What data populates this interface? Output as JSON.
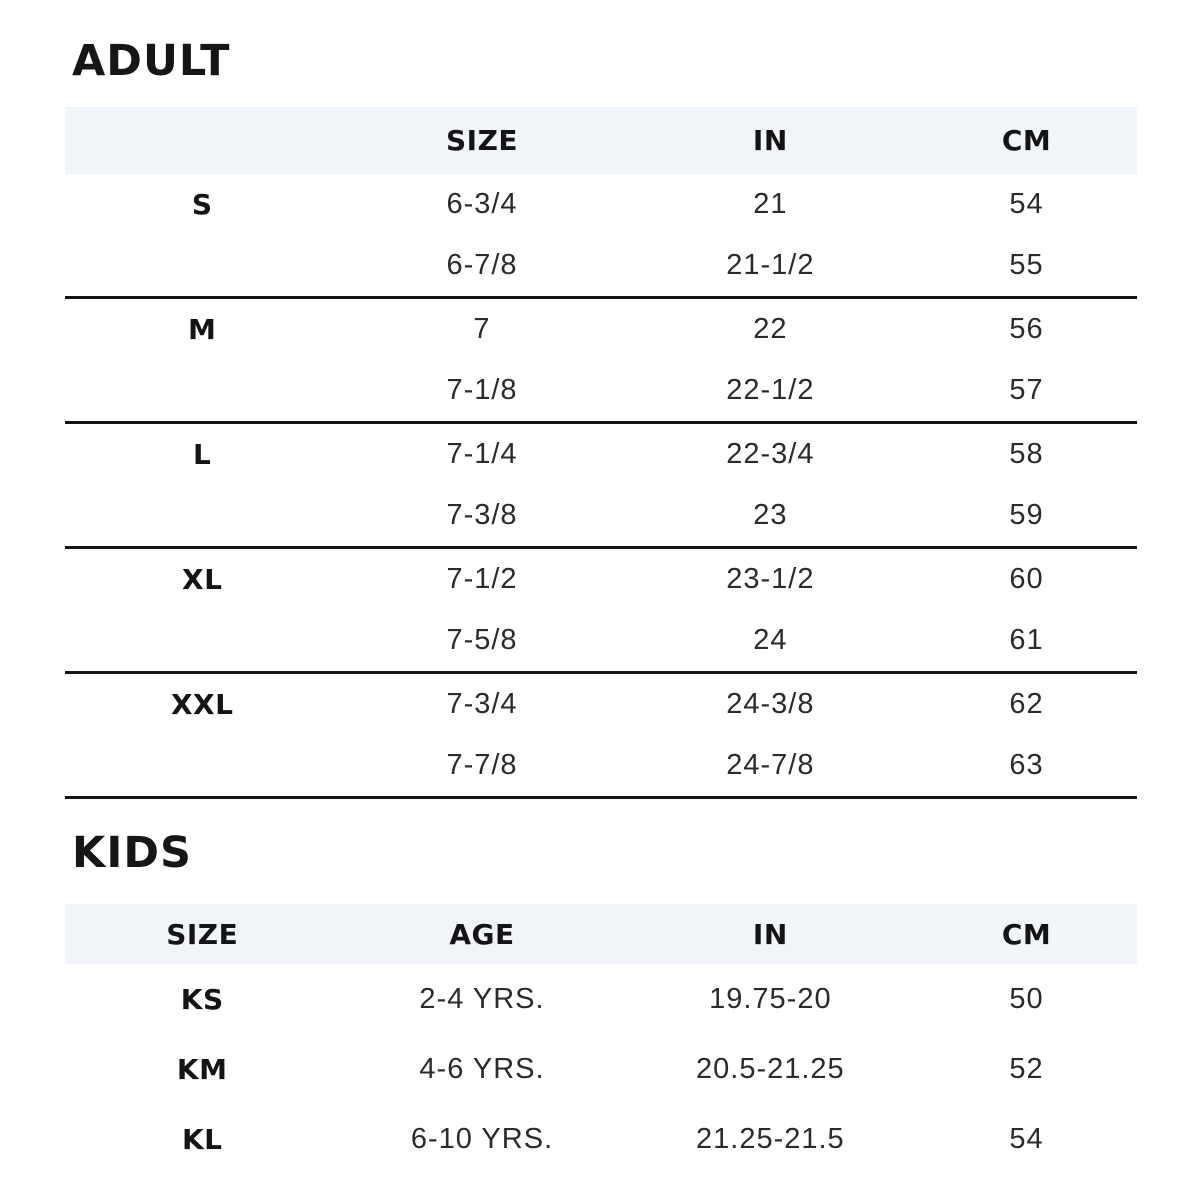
{
  "page": {
    "background_color": "#ffffff",
    "header_row_color": "#f1f5f9",
    "divider_color": "#141414",
    "text_color": "#2b2b2b"
  },
  "adult": {
    "title": "ADULT",
    "columns": [
      "",
      "SIZE",
      "IN",
      "CM"
    ],
    "sections": [
      {
        "rows": [
          [
            "S",
            "6-3/4",
            "21",
            "54"
          ],
          [
            "",
            "6-7/8",
            "21-1/2",
            "55"
          ]
        ]
      },
      {
        "rows": [
          [
            "M",
            "7",
            "22",
            "56"
          ],
          [
            "",
            "7-1/8",
            "22-1/2",
            "57"
          ]
        ]
      },
      {
        "rows": [
          [
            "L",
            "7-1/4",
            "22-3/4",
            "58"
          ],
          [
            "",
            "7-3/8",
            "23",
            "59"
          ]
        ]
      },
      {
        "rows": [
          [
            "XL",
            "7-1/2",
            "23-1/2",
            "60"
          ],
          [
            "",
            "7-5/8",
            "24",
            "61"
          ]
        ]
      },
      {
        "rows": [
          [
            "XXL",
            "7-3/4",
            "24-3/8",
            "62"
          ],
          [
            "",
            "7-7/8",
            "24-7/8",
            "63"
          ]
        ]
      }
    ]
  },
  "kids": {
    "title": "KIDS",
    "columns": [
      "SIZE",
      "AGE",
      "IN",
      "CM"
    ],
    "rows": [
      [
        "KS",
        "2-4 YRS.",
        "19.75-20",
        "50"
      ],
      [
        "KM",
        "4-6 YRS.",
        "20.5-21.25",
        "52"
      ],
      [
        "KL",
        "6-10 YRS.",
        "21.25-21.5",
        "54"
      ]
    ]
  },
  "chart_data": [
    {
      "type": "table",
      "title": "ADULT",
      "columns": [
        "",
        "SIZE",
        "IN",
        "CM"
      ],
      "rows": [
        [
          "S",
          "6-3/4",
          "21",
          "54"
        ],
        [
          "",
          "6-7/8",
          "21-1/2",
          "55"
        ],
        [
          "M",
          "7",
          "22",
          "56"
        ],
        [
          "",
          "7-1/8",
          "22-1/2",
          "57"
        ],
        [
          "L",
          "7-1/4",
          "22-3/4",
          "58"
        ],
        [
          "",
          "7-3/8",
          "23",
          "59"
        ],
        [
          "XL",
          "7-1/2",
          "23-1/2",
          "60"
        ],
        [
          "",
          "7-5/8",
          "24",
          "61"
        ],
        [
          "XXL",
          "7-3/4",
          "24-3/8",
          "62"
        ],
        [
          "",
          "7-7/8",
          "24-7/8",
          "63"
        ]
      ]
    },
    {
      "type": "table",
      "title": "KIDS",
      "columns": [
        "SIZE",
        "AGE",
        "IN",
        "CM"
      ],
      "rows": [
        [
          "KS",
          "2-4 YRS.",
          "19.75-20",
          "50"
        ],
        [
          "KM",
          "4-6 YRS.",
          "20.5-21.25",
          "52"
        ],
        [
          "KL",
          "6-10 YRS.",
          "21.25-21.5",
          "54"
        ]
      ]
    }
  ]
}
